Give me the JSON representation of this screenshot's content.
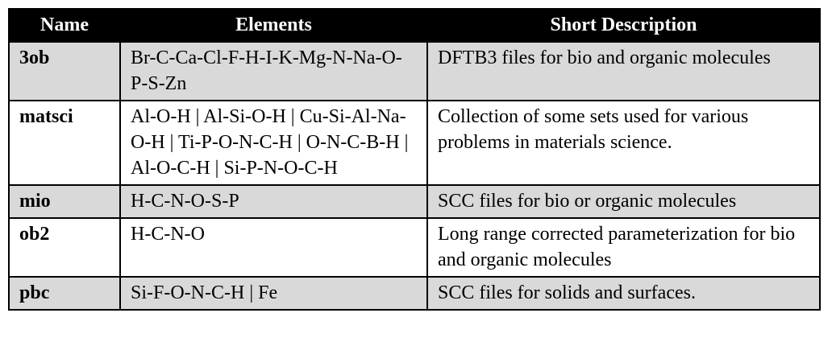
{
  "table": {
    "headers": [
      "Name",
      "Elements",
      "Short Description"
    ],
    "rows": [
      {
        "name": "3ob",
        "elements": "Br-C-Ca-Cl-F-H-I-K-Mg-N-Na-O-P-S-Zn",
        "description": "DFTB3 files for bio and organic molecules",
        "shaded": true
      },
      {
        "name": "matsci",
        "elements": "Al-O-H | Al-Si-O-H | Cu-Si-Al-Na-O-H | Ti-P-O-N-C-H | O-N-C-B-H | Al-O-C-H | Si-P-N-O-C-H",
        "description": "Collection of some sets used for various problems in materials science.",
        "shaded": false
      },
      {
        "name": "mio",
        "elements": "H-C-N-O-S-P",
        "description": "SCC files for bio or organic molecules",
        "shaded": true
      },
      {
        "name": "ob2",
        "elements": "H-C-N-O",
        "description": "Long range corrected parameterization for bio and organic molecules",
        "shaded": false
      },
      {
        "name": "pbc",
        "elements": "Si-F-O-N-C-H | Fe",
        "description": "SCC files for solids and surfaces.",
        "shaded": true
      }
    ]
  }
}
